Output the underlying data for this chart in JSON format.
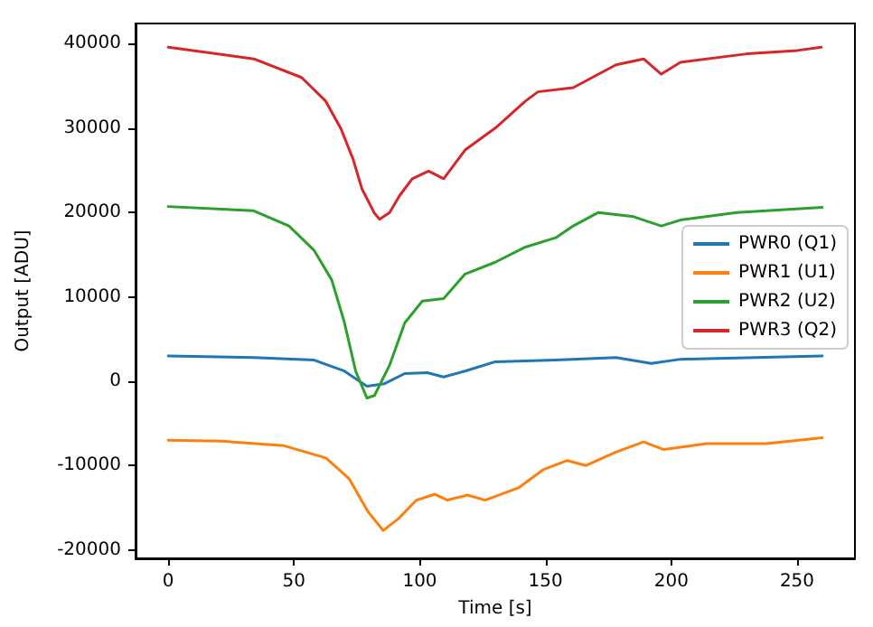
{
  "chart_data": {
    "type": "line",
    "xlabel": "Time [s]",
    "ylabel": "Output [ADU]",
    "xlim": [
      -13,
      273
    ],
    "ylim": [
      -21000,
      42400
    ],
    "xticks": [
      0,
      50,
      100,
      150,
      200,
      250
    ],
    "yticks": [
      -20000,
      -10000,
      0,
      10000,
      20000,
      30000,
      40000
    ],
    "grid": false,
    "legend": "center right",
    "marker": "none",
    "line_style": "solid",
    "series": [
      {
        "name": "PWR0 (Q1)",
        "color": "#1f77b4",
        "x": [
          0,
          34,
          58,
          70,
          79,
          86,
          94,
          103,
          109.5,
          118,
          130,
          154,
          178,
          192,
          203.6,
          260
        ],
        "values": [
          3000,
          2800,
          2500,
          1200,
          -600,
          -300,
          900,
          1000,
          500,
          1200,
          2300,
          2500,
          2800,
          2100,
          2600,
          3000
        ]
      },
      {
        "name": "PWR1 (U1)",
        "color": "#ff7f0e",
        "x": [
          0,
          21,
          46,
          62.7,
          72,
          79.5,
          85.5,
          91.5,
          98.7,
          106,
          111,
          119,
          126,
          139.5,
          149,
          158.7,
          166,
          178,
          189,
          197,
          214,
          238,
          260
        ],
        "values": [
          -7000,
          -7100,
          -7650,
          -9100,
          -11600,
          -15500,
          -17700,
          -16300,
          -14100,
          -13400,
          -14100,
          -13500,
          -14100,
          -12600,
          -10500,
          -9400,
          -10000,
          -8400,
          -7200,
          -8100,
          -7400,
          -7400,
          -6700
        ]
      },
      {
        "name": "PWR2 (U2)",
        "color": "#2ca02c",
        "x": [
          0,
          34,
          48,
          58,
          65,
          70,
          74.5,
          79,
          82,
          88,
          94,
          101,
          109.5,
          118,
          130,
          142,
          154,
          161,
          171,
          185,
          196,
          203.6,
          226,
          260
        ],
        "values": [
          20700,
          20200,
          18400,
          15500,
          12000,
          7000,
          1200,
          -2000,
          -1700,
          1900,
          6900,
          9500,
          9800,
          12700,
          14100,
          15900,
          17000,
          18400,
          20000,
          19500,
          18400,
          19100,
          20000,
          20600
        ]
      },
      {
        "name": "PWR3 (Q2)",
        "color": "#d62728",
        "x": [
          0,
          34,
          53,
          62.6,
          68.7,
          73.5,
          77,
          82,
          84,
          88,
          92,
          97,
          103.5,
          109.5,
          118,
          130,
          142,
          147,
          161,
          178,
          189,
          196,
          203.6,
          230,
          250,
          259.6
        ],
        "values": [
          39600,
          38200,
          36000,
          33200,
          29900,
          26300,
          22800,
          19900,
          19200,
          20000,
          22000,
          24000,
          24900,
          24000,
          27400,
          30000,
          33200,
          34300,
          34800,
          37500,
          38200,
          36400,
          37800,
          38800,
          39200,
          39600
        ]
      }
    ]
  }
}
